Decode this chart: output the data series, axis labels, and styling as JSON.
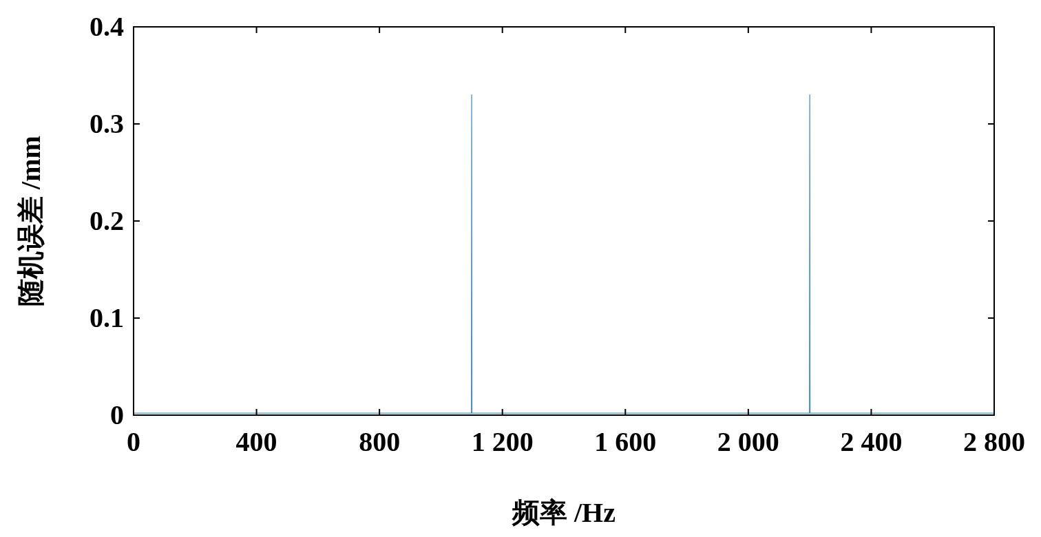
{
  "chart_data": {
    "type": "line",
    "xlabel": "频率 /Hz",
    "ylabel": "随机误差 /mm",
    "x": [
      0,
      1099,
      1100,
      1101,
      2199,
      2200,
      2201,
      2800
    ],
    "series": [
      {
        "color": "#4a90c8",
        "values": [
          0.002,
          0.002,
          0.33,
          0.002,
          0.002,
          0.33,
          0.002,
          0.002
        ]
      }
    ],
    "xlim": [
      0,
      2800
    ],
    "xticks": [
      0,
      400,
      800,
      {
        "value": 1200,
        "label": "1 200"
      },
      {
        "value": 1600,
        "label": "1 600"
      },
      {
        "value": 2000,
        "label": "2 000"
      },
      {
        "value": 2400,
        "label": "2 400"
      },
      {
        "value": 2800,
        "label": "2 800"
      }
    ],
    "ylim": [
      0,
      0.4
    ],
    "yticks": [
      0,
      0.1,
      0.2,
      0.3,
      0.4
    ],
    "grid": false,
    "marker": "none",
    "line_style": "solid"
  }
}
